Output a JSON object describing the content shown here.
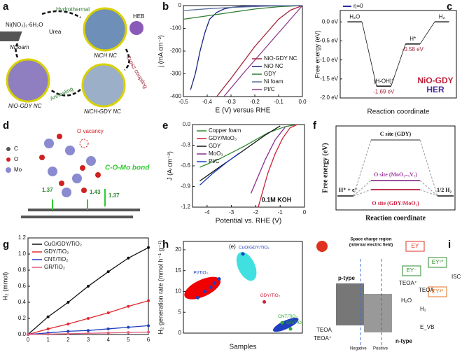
{
  "chart_data": [
    {
      "type": "line",
      "label": "b",
      "xlabel": "E (V) versus RHE",
      "ylabel": "j (mA cm⁻²)",
      "xlim": [
        -0.5,
        0
      ],
      "ylim": [
        -400,
        0
      ],
      "xticks": [
        -0.5,
        -0.4,
        -0.3,
        -0.2,
        -0.1,
        {
          "value": 0,
          "label": "0.0"
        }
      ],
      "yticks": [
        0,
        -100,
        -200,
        -300,
        -400
      ],
      "legend": "lower right",
      "series": [
        {
          "name": "NiO-GDY NC",
          "color": "#a3243b",
          "x": [
            -0.36,
            -0.3,
            -0.25,
            -0.2,
            -0.15,
            -0.1,
            -0.05,
            0
          ],
          "values": [
            -400,
            -320,
            -250,
            -180,
            -120,
            -60,
            -20,
            0
          ]
        },
        {
          "name": "NiO NC",
          "color": "#1a237e",
          "x": [
            -0.47,
            -0.45,
            -0.43,
            -0.41,
            -0.39,
            -0.36,
            -0.33,
            -0.3,
            -0.25,
            -0.2,
            0
          ],
          "values": [
            -370,
            -300,
            -200,
            -120,
            -60,
            -30,
            -15,
            -8,
            -3,
            -1,
            0
          ]
        },
        {
          "name": "GDY",
          "color": "#2e7d32",
          "x": [
            -0.5,
            -0.4,
            -0.3,
            -0.2,
            -0.1,
            0
          ],
          "values": [
            -60,
            -45,
            -30,
            -15,
            -5,
            0
          ]
        },
        {
          "name": "Ni foam",
          "color": "#5b6f9e",
          "x": [
            -0.5,
            -0.4,
            -0.3,
            -0.2,
            -0.1,
            0
          ],
          "values": [
            -22,
            -14,
            -8,
            -4,
            -1,
            0
          ]
        },
        {
          "name": "Pt/C",
          "color": "#8e3a8e",
          "x": [
            -0.33,
            -0.25,
            -0.15,
            -0.05,
            0
          ],
          "values": [
            -400,
            -300,
            -180,
            -60,
            0
          ]
        }
      ]
    },
    {
      "type": "energy",
      "label": "c",
      "xlabel": "Reaction coordinate",
      "ylabel": "Free energy (eV)",
      "ylim": [
        -2.0,
        0.3
      ],
      "yticks": [
        {
          "value": 0,
          "label": "0.0 eV"
        },
        {
          "value": -0.5,
          "label": "-0.5 eV"
        },
        {
          "value": -1,
          "label": "-1.0 eV"
        },
        {
          "value": -1.5,
          "label": "-1.5 eV"
        },
        {
          "value": -2,
          "label": "-2.0 eV"
        }
      ],
      "categories": [
        "H₂O",
        "(H-OH)*",
        "H*",
        "H₂"
      ],
      "series": [
        {
          "name": "η=0",
          "color": "#2a2aa0",
          "values": [
            0,
            -1.69,
            -0.58,
            0
          ],
          "value_labels": [
            null,
            "-1.69 eV",
            "-0.58 eV",
            null
          ]
        }
      ],
      "annotations": [
        "NiO-GDY",
        "HER"
      ]
    },
    {
      "type": "line",
      "label": "e",
      "xlabel": "Potential vs. RHE (V)",
      "ylabel": "J (A·cm⁻²)",
      "xlim": [
        -4.6,
        0
      ],
      "ylim": [
        -1.2,
        0
      ],
      "xticks": [
        -4,
        -3,
        -2,
        -1,
        0
      ],
      "yticks": [
        {
          "value": 0,
          "label": "0.0"
        },
        -0.3,
        -0.6,
        -0.9,
        -1.2
      ],
      "legend": "upper left",
      "annotations": [
        "0.1M KOH"
      ],
      "series": [
        {
          "name": "Copper foam",
          "color": "#2e8b2e",
          "x": [
            -4.3,
            -3.5,
            -2.5,
            -1.5,
            -0.8,
            -0.3
          ],
          "values": [
            -0.62,
            -0.5,
            -0.32,
            -0.12,
            -0.03,
            0
          ]
        },
        {
          "name": "GDY/MoO₃",
          "color": "#d0203a",
          "x": [
            -1.9,
            -1.7,
            -1.5,
            -1.2,
            -0.9,
            -0.6,
            -0.3
          ],
          "values": [
            -1.2,
            -0.95,
            -0.7,
            -0.42,
            -0.2,
            -0.05,
            0
          ]
        },
        {
          "name": "GDY",
          "color": "#111111",
          "x": [
            -4.3,
            -3.5,
            -2.8,
            -2.2,
            -1.6,
            -1.0
          ],
          "values": [
            -0.82,
            -0.62,
            -0.45,
            -0.3,
            -0.15,
            -0.02
          ]
        },
        {
          "name": "MoO₃",
          "color": "#8e2a8e",
          "x": [
            -2.2,
            -1.9,
            -1.6,
            -1.2,
            -0.8
          ],
          "values": [
            -1.0,
            -0.75,
            -0.5,
            -0.22,
            -0.04
          ]
        },
        {
          "name": "Pt/C",
          "color": "#1f3fbf",
          "x": [
            -4.3,
            -3.8,
            -3.2,
            -2.7
          ],
          "values": [
            -0.88,
            -0.72,
            -0.55,
            -0.42
          ]
        }
      ]
    },
    {
      "type": "line",
      "label": "g",
      "markers": true,
      "ylabel": "H₂ (mmol)",
      "xlim": [
        0,
        6
      ],
      "ylim": [
        0,
        1.2
      ],
      "x": [
        0,
        1,
        2,
        3,
        4,
        5,
        6
      ],
      "xticks": [
        0,
        1,
        2,
        3,
        4,
        5,
        6
      ],
      "yticks": [
        {
          "value": 0,
          "label": "0.0"
        },
        0.2,
        0.4,
        0.6,
        0.8,
        {
          "value": 1,
          "label": "1.0"
        },
        1.2
      ],
      "legend": "upper left",
      "series": [
        {
          "name": "CuO/GDY/TiO₂",
          "color": "#111111",
          "values": [
            0,
            0.22,
            0.4,
            0.6,
            0.78,
            0.95,
            1.08
          ]
        },
        {
          "name": "GDY/TiO₂",
          "color": "#e0282e",
          "values": [
            0,
            0.07,
            0.13,
            0.2,
            0.27,
            0.35,
            0.42
          ]
        },
        {
          "name": "CNT/TiO₂",
          "color": "#1f3fbf",
          "values": [
            0,
            0.02,
            0.04,
            0.05,
            0.07,
            0.09,
            0.11
          ]
        },
        {
          "name": "GR/TiO₂",
          "color": "#e0607e",
          "values": [
            0,
            0.005,
            0.01,
            0.015,
            0.02,
            0.025,
            0.03
          ]
        }
      ]
    },
    {
      "type": "scatter",
      "label": "h",
      "xlabel": "Samples",
      "ylabel": "H₂ generation rate (mmol h⁻¹ g⁻¹)",
      "xlim": [
        0,
        10
      ],
      "ylim": [
        0,
        22
      ],
      "yticks": [
        0,
        5,
        10,
        15,
        20
      ],
      "annotations": [
        "(e)"
      ],
      "series": [
        {
          "name": "Pt/TiO₂",
          "color": "#1f3fbf",
          "x": [
            1.2,
            1.8,
            2.3,
            2.6,
            3.0
          ],
          "values": [
            8.5,
            10,
            11,
            12,
            13
          ]
        },
        {
          "name": "CuO/GDY/TiO₂",
          "color": "#1f3fbf",
          "x": [
            5.0
          ],
          "values": [
            19
          ]
        },
        {
          "name": "GDY/TiO₂",
          "color": "#d0203a",
          "x": [
            6.8
          ],
          "values": [
            7.5
          ]
        },
        {
          "name": "CNT/TiO₂",
          "color": "#2eaa2e",
          "x": [
            8.3
          ],
          "values": [
            2.5
          ]
        },
        {
          "name": "GR/TiO₂",
          "color": "#2eaa2e",
          "x": [
            9.0
          ],
          "values": [
            1
          ]
        }
      ]
    }
  ],
  "diagrams": {
    "a": {
      "label": "a",
      "texts": [
        "Ni(NO₃)₂·6H₂O",
        "Hydrothermal",
        "Urea",
        "HEB",
        "Ni foam",
        "NiCH NC",
        "Cross coupling",
        "NiO-GDY NC",
        "Annealing",
        "NiCH-GDY NC"
      ]
    },
    "d": {
      "label": "d",
      "texts": [
        "O vacancy",
        "C",
        "O",
        "Mo",
        "C-O-Mo bond",
        "1.37",
        "1.43",
        "1.37"
      ]
    },
    "f": {
      "label": "f",
      "ylabel": "Free energy (eV)",
      "xlabel": "Reaction coordinate",
      "texts": [
        "C site (GDY)",
        "O site (MoO₃₋ₓVₒ)",
        "O site (GDY/MoO₃)",
        "H⁺ + e⁻",
        "1/2 H₂"
      ]
    },
    "i": {
      "label": "i",
      "texts": [
        "Space charge region",
        "(internal electric field)",
        "EY",
        "EY¹*",
        "EY³*",
        "EY⁻",
        "ISC",
        "TEOA",
        "TEOA⁺",
        "H₂O",
        "H₂",
        "p-type",
        "n-type",
        "Negative",
        "Positive",
        "TEOA",
        "TEOA⁺",
        "E_VB"
      ]
    }
  }
}
